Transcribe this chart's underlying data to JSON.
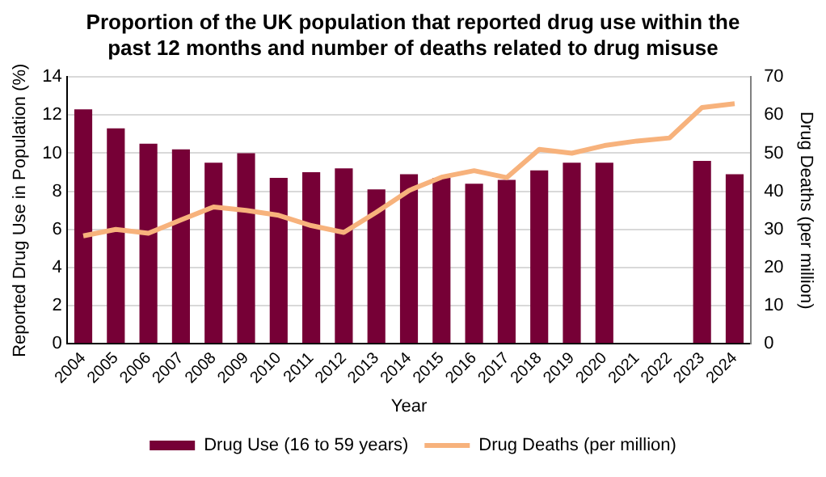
{
  "chart_data": {
    "type": "bar",
    "title": "Proportion of the UK population that reported drug use within the past 12 months and number of deaths related to drug misuse",
    "xlabel": "Year",
    "ylabel": "Reported Drug Use in Population (%)",
    "y2label": "Drug Deaths (per million)",
    "categories": [
      "2004",
      "2005",
      "2006",
      "2007",
      "2008",
      "2009",
      "2010",
      "2011",
      "2012",
      "2013",
      "2014",
      "2015",
      "2016",
      "2017",
      "2018",
      "2019",
      "2020",
      "2021",
      "2022",
      "2023",
      "2024"
    ],
    "series": [
      {
        "name": "Drug Use (16 to 59 years)",
        "color": "#760036",
        "values": [
          12.3,
          11.3,
          10.5,
          10.2,
          9.5,
          10.0,
          8.7,
          9.0,
          9.2,
          8.1,
          8.9,
          8.7,
          8.4,
          8.6,
          9.1,
          9.5,
          9.5,
          null,
          null,
          9.6,
          8.9
        ]
      },
      {
        "name": "Drug Deaths (per million)",
        "type": "line",
        "axis": "y2",
        "color": "#f7b27c",
        "values": [
          28.3,
          30,
          29,
          32.5,
          35.9,
          35,
          33.7,
          31,
          29.2,
          34.5,
          40.2,
          43.7,
          45.4,
          43.6,
          51,
          50,
          52,
          53.2,
          54,
          62,
          63
        ]
      }
    ],
    "ylim": [
      0,
      14
    ],
    "yticks": [
      0,
      2,
      4,
      6,
      8,
      10,
      12,
      14
    ],
    "y2lim": [
      0,
      70
    ],
    "y2ticks": [
      0,
      10,
      20,
      30,
      40,
      50,
      60,
      70
    ],
    "grid": "y",
    "legend": "bottom",
    "marker": "none"
  }
}
